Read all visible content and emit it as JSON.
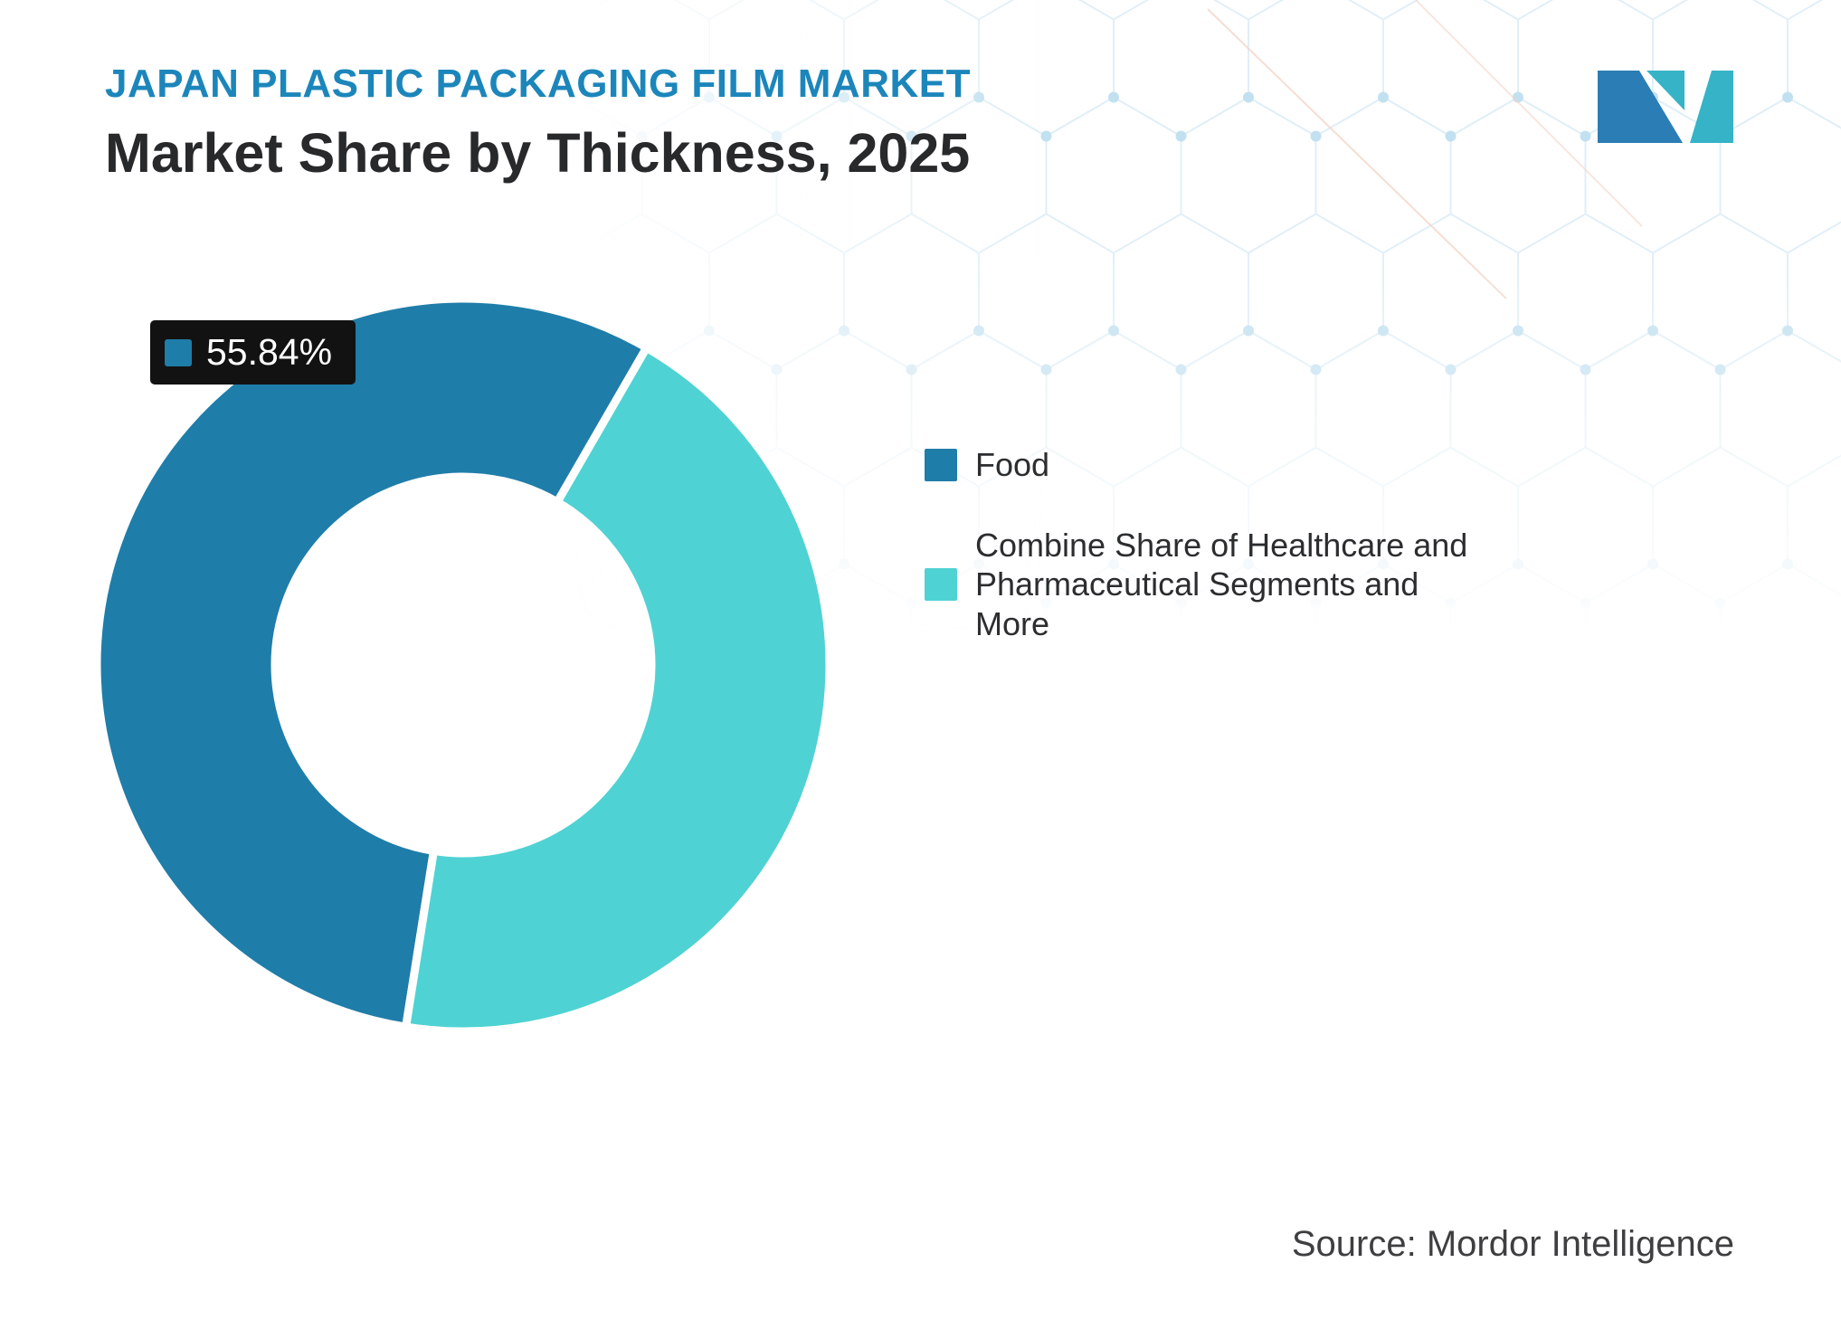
{
  "page": {
    "kicker": "JAPAN PLASTIC PACKAGING FILM MARKET",
    "title": "Market Share by Thickness, 2025",
    "source": "Source: Mordor Intelligence"
  },
  "colors": {
    "kicker_blue": "#1c86bb",
    "title_dark": "#27292b",
    "badge_bg": "#121212",
    "food_blue": "#1f7da9",
    "other_teal": "#4fd2d3"
  },
  "chart_data": {
    "type": "pie",
    "subtype": "donut",
    "title": "Market Share by Thickness, 2025",
    "start_angle_deg": 189,
    "inner_radius_ratio": 0.5,
    "legend_position": "right",
    "annotation": {
      "label": "55.84%",
      "series": "Food"
    },
    "segments": [
      {
        "label": "Food",
        "value": 55.84,
        "color": "#1f7da9"
      },
      {
        "label": "Combine Share of Healthcare and Pharmaceutical Segments and More",
        "value": 44.16,
        "color": "#4fd2d3"
      }
    ]
  }
}
